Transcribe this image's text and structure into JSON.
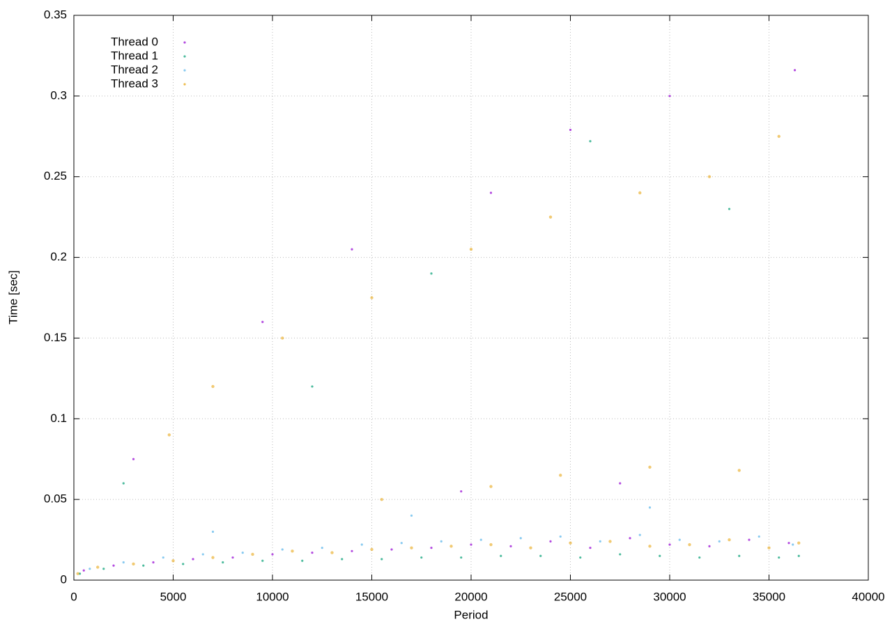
{
  "chart_data": {
    "type": "scatter",
    "xlabel": "Period",
    "ylabel": "Time [sec]",
    "xlim": [
      0,
      40000
    ],
    "ylim": [
      0,
      0.35
    ],
    "xticks": [
      0,
      5000,
      10000,
      15000,
      20000,
      25000,
      30000,
      35000,
      40000
    ],
    "yticks": [
      0,
      0.05,
      0.1,
      0.15,
      0.2,
      0.25,
      0.3,
      0.35
    ],
    "grid": true,
    "legend": "top-left",
    "series": [
      {
        "name": "Thread 0",
        "color": "#9400d3",
        "x": [
          500,
          2000,
          4000,
          6000,
          8000,
          10000,
          12000,
          14000,
          16000,
          18000,
          20000,
          22000,
          24000,
          26000,
          28000,
          30000,
          32000,
          34000,
          36000,
          3000,
          9500,
          14000,
          21000,
          25000,
          30000,
          36300,
          19500,
          27500
        ],
        "values": [
          0.006,
          0.009,
          0.011,
          0.013,
          0.014,
          0.016,
          0.017,
          0.018,
          0.019,
          0.02,
          0.022,
          0.021,
          0.024,
          0.02,
          0.026,
          0.022,
          0.021,
          0.025,
          0.023,
          0.075,
          0.16,
          0.205,
          0.24,
          0.279,
          0.3,
          0.316,
          0.055,
          0.06
        ]
      },
      {
        "name": "Thread 1",
        "color": "#009e73",
        "x": [
          300,
          1500,
          3500,
          5500,
          7500,
          9500,
          11500,
          13500,
          15500,
          17500,
          19500,
          21500,
          23500,
          25500,
          27500,
          29500,
          31500,
          33500,
          35500,
          36500,
          2500,
          12000,
          18000,
          26000,
          33000
        ],
        "values": [
          0.004,
          0.007,
          0.009,
          0.01,
          0.011,
          0.012,
          0.012,
          0.013,
          0.013,
          0.014,
          0.014,
          0.015,
          0.015,
          0.014,
          0.016,
          0.015,
          0.014,
          0.015,
          0.014,
          0.015,
          0.06,
          0.12,
          0.19,
          0.272,
          0.23
        ]
      },
      {
        "name": "Thread 2",
        "color": "#56b4e9",
        "x": [
          800,
          2500,
          4500,
          6500,
          8500,
          10500,
          12500,
          14500,
          16500,
          18500,
          20500,
          22500,
          24500,
          26500,
          28500,
          30500,
          32500,
          34500,
          36200,
          7000,
          17000,
          29000
        ],
        "values": [
          0.007,
          0.011,
          0.014,
          0.016,
          0.017,
          0.019,
          0.02,
          0.022,
          0.023,
          0.024,
          0.025,
          0.026,
          0.027,
          0.024,
          0.028,
          0.025,
          0.024,
          0.027,
          0.022,
          0.03,
          0.04,
          0.045
        ]
      },
      {
        "name": "Thread 3",
        "color": "#e69f00",
        "x": [
          200,
          1200,
          3000,
          5000,
          7000,
          9000,
          11000,
          13000,
          15000,
          17000,
          19000,
          21000,
          23000,
          25000,
          27000,
          29000,
          31000,
          33000,
          35000,
          36500,
          4800,
          7000,
          10500,
          15000,
          20000,
          24000,
          28500,
          32000,
          35500,
          24500,
          29000,
          33500,
          21000,
          15500
        ],
        "values": [
          0.004,
          0.008,
          0.01,
          0.012,
          0.014,
          0.016,
          0.018,
          0.017,
          0.019,
          0.02,
          0.021,
          0.022,
          0.02,
          0.023,
          0.024,
          0.021,
          0.022,
          0.025,
          0.02,
          0.023,
          0.09,
          0.12,
          0.15,
          0.175,
          0.205,
          0.225,
          0.24,
          0.25,
          0.275,
          0.065,
          0.07,
          0.068,
          0.058,
          0.05
        ]
      }
    ]
  }
}
